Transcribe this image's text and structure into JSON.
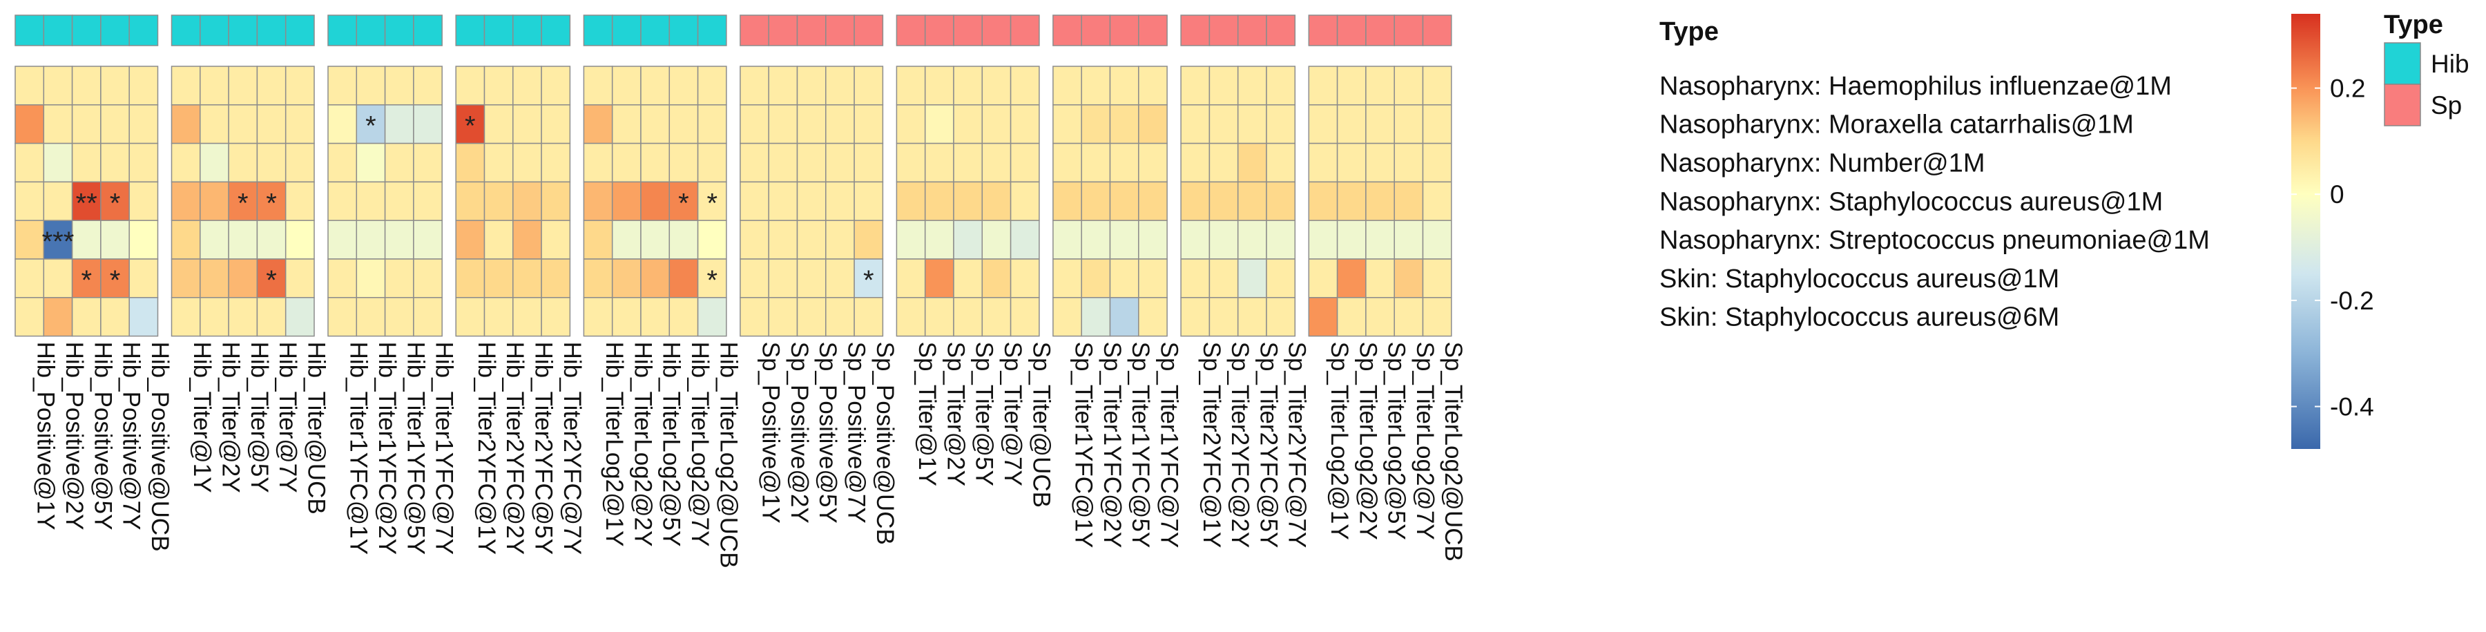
{
  "chart_data": {
    "type": "heatmap",
    "rows": [
      "Nasopharynx: Haemophilus influenzae@1M",
      "Nasopharynx: Moraxella catarrhalis@1M",
      "Nasopharynx: Number@1M",
      "Nasopharynx: Staphylococcus aureus@1M",
      "Nasopharynx: Streptococcus pneumoniae@1M",
      "Skin: Staphylococcus aureus@1M",
      "Skin: Staphylococcus aureus@6M"
    ],
    "column_groups": [
      {
        "type": "Hib",
        "columns": [
          "Hib_Positive@1Y",
          "Hib_Positive@2Y",
          "Hib_Positive@5Y",
          "Hib_Positive@7Y",
          "Hib_Positive@UCB"
        ]
      },
      {
        "type": "Hib",
        "columns": [
          "Hib_Titer@1Y",
          "Hib_Titer@2Y",
          "Hib_Titer@5Y",
          "Hib_Titer@7Y",
          "Hib_Titer@UCB"
        ]
      },
      {
        "type": "Hib",
        "columns": [
          "Hib_Titer1YFC@1Y",
          "Hib_Titer1YFC@2Y",
          "Hib_Titer1YFC@5Y",
          "Hib_Titer1YFC@7Y"
        ]
      },
      {
        "type": "Hib",
        "columns": [
          "Hib_Titer2YFC@1Y",
          "Hib_Titer2YFC@2Y",
          "Hib_Titer2YFC@5Y",
          "Hib_Titer2YFC@7Y"
        ]
      },
      {
        "type": "Hib",
        "columns": [
          "Hib_TiterLog2@1Y",
          "Hib_TiterLog2@2Y",
          "Hib_TiterLog2@5Y",
          "Hib_TiterLog2@7Y",
          "Hib_TiterLog2@UCB"
        ]
      },
      {
        "type": "Sp",
        "columns": [
          "Sp_Positive@1Y",
          "Sp_Positive@2Y",
          "Sp_Positive@5Y",
          "Sp_Positive@7Y",
          "Sp_Positive@UCB"
        ]
      },
      {
        "type": "Sp",
        "columns": [
          "Sp_Titer@1Y",
          "Sp_Titer@2Y",
          "Sp_Titer@5Y",
          "Sp_Titer@7Y",
          "Sp_Titer@UCB"
        ]
      },
      {
        "type": "Sp",
        "columns": [
          "Sp_Titer1YFC@1Y",
          "Sp_Titer1YFC@2Y",
          "Sp_Titer1YFC@5Y",
          "Sp_Titer1YFC@7Y"
        ]
      },
      {
        "type": "Sp",
        "columns": [
          "Sp_Titer2YFC@1Y",
          "Sp_Titer2YFC@2Y",
          "Sp_Titer2YFC@5Y",
          "Sp_Titer2YFC@7Y"
        ]
      },
      {
        "type": "Sp",
        "columns": [
          "Sp_TiterLog2@1Y",
          "Sp_TiterLog2@2Y",
          "Sp_TiterLog2@5Y",
          "Sp_TiterLog2@7Y",
          "Sp_TiterLog2@UCB"
        ]
      }
    ],
    "values": [
      [
        0.05,
        0.05,
        0.05,
        0.05,
        0.05,
        0.05,
        0.05,
        0.05,
        0.05,
        0.05,
        0.05,
        0.05,
        0.05,
        0.05,
        0.05,
        0.05,
        0.05,
        0.05,
        0.05,
        0.05,
        0.05,
        0.05,
        0.05,
        0.05,
        0.05,
        0.05,
        0.05,
        0.05,
        0.05,
        0.05,
        0.05,
        0.05,
        0.05,
        0.05,
        0.05,
        0.05,
        0.05,
        0.05,
        0.05,
        0.05,
        0.05,
        0.05,
        0.05,
        0.05,
        0.05,
        0.05
      ],
      [
        0.2,
        0.05,
        0.05,
        0.05,
        0.05,
        0.15,
        0.05,
        0.05,
        0.05,
        0.05,
        0.02,
        -0.2,
        -0.1,
        -0.1,
        0.3,
        0.05,
        0.05,
        0.05,
        0.15,
        0.05,
        0.05,
        0.05,
        0.05,
        0.05,
        0.05,
        0.05,
        0.05,
        0.05,
        0.05,
        0.02,
        0.05,
        0.05,
        0.05,
        0.05,
        0.08,
        0.08,
        0.1,
        0.05,
        0.05,
        0.05,
        0.05,
        0.05,
        0.05,
        0.05,
        0.05,
        0.05
      ],
      [
        0.05,
        -0.05,
        0.05,
        0.05,
        0.05,
        0.05,
        -0.05,
        0.05,
        0.05,
        0.05,
        0.05,
        -0.02,
        0.05,
        0.05,
        0.1,
        0.05,
        0.05,
        0.05,
        0.05,
        0.05,
        0.05,
        0.05,
        0.05,
        0.05,
        0.05,
        0.05,
        0.05,
        0.05,
        0.05,
        0.05,
        0.05,
        0.05,
        0.05,
        0.05,
        0.05,
        0.05,
        0.05,
        0.05,
        0.05,
        0.1,
        0.05,
        0.05,
        0.05,
        0.05,
        0.05,
        0.05
      ],
      [
        0.05,
        0.05,
        0.3,
        0.25,
        0.05,
        0.15,
        0.15,
        0.22,
        0.22,
        0.05,
        0.05,
        0.05,
        0.05,
        0.05,
        0.1,
        0.1,
        0.12,
        0.1,
        0.15,
        0.18,
        0.22,
        0.22,
        0.05,
        0.05,
        0.05,
        0.05,
        0.05,
        0.05,
        0.1,
        0.1,
        0.1,
        0.1,
        0.05,
        0.1,
        0.1,
        0.1,
        0.1,
        0.1,
        0.1,
        0.1,
        0.1,
        0.1,
        0.1,
        0.1,
        0.1,
        0.05
      ],
      [
        0.1,
        -0.45,
        -0.05,
        -0.05,
        0.0,
        0.1,
        -0.05,
        -0.05,
        -0.05,
        0.0,
        -0.05,
        -0.05,
        -0.05,
        -0.05,
        0.15,
        0.05,
        0.15,
        0.05,
        0.1,
        -0.05,
        -0.05,
        -0.05,
        0.0,
        0.05,
        0.05,
        0.05,
        0.05,
        0.1,
        -0.05,
        -0.05,
        -0.1,
        -0.05,
        -0.1,
        -0.05,
        -0.05,
        -0.05,
        -0.05,
        -0.05,
        -0.05,
        -0.05,
        -0.05,
        -0.05,
        -0.05,
        -0.05,
        -0.05,
        -0.05
      ],
      [
        0.05,
        0.05,
        0.22,
        0.22,
        0.05,
        0.12,
        0.12,
        0.15,
        0.25,
        0.05,
        0.05,
        0.02,
        0.05,
        0.05,
        0.1,
        0.1,
        0.1,
        0.1,
        0.1,
        0.12,
        0.15,
        0.22,
        0.05,
        0.05,
        0.05,
        0.05,
        0.05,
        -0.15,
        0.05,
        0.2,
        0.05,
        0.1,
        0.05,
        0.05,
        0.08,
        0.05,
        0.05,
        0.05,
        0.05,
        -0.1,
        0.05,
        0.05,
        0.2,
        0.05,
        0.12,
        0.05
      ],
      [
        0.05,
        0.15,
        0.05,
        0.05,
        -0.15,
        0.05,
        0.05,
        0.05,
        0.05,
        -0.1,
        0.05,
        0.05,
        0.05,
        0.05,
        0.05,
        0.05,
        0.05,
        0.05,
        0.05,
        0.05,
        0.05,
        0.05,
        -0.1,
        0.05,
        0.05,
        0.05,
        0.05,
        0.05,
        0.05,
        0.05,
        0.05,
        0.05,
        0.05,
        0.05,
        -0.1,
        -0.2,
        0.05,
        0.05,
        0.05,
        0.05,
        0.05,
        0.2,
        0.05,
        0.05,
        0.05,
        0.05
      ]
    ],
    "significance": [
      {
        "row": 1,
        "col": 11,
        "label": "*"
      },
      {
        "row": 1,
        "col": 14,
        "label": "*"
      },
      {
        "row": 3,
        "col": 2,
        "label": "**"
      },
      {
        "row": 3,
        "col": 3,
        "label": "*"
      },
      {
        "row": 3,
        "col": 7,
        "label": "*"
      },
      {
        "row": 3,
        "col": 8,
        "label": "*"
      },
      {
        "row": 3,
        "col": 21,
        "label": "*"
      },
      {
        "row": 3,
        "col": 22,
        "label": "*"
      },
      {
        "row": 4,
        "col": 1,
        "label": "***"
      },
      {
        "row": 5,
        "col": 2,
        "label": "*"
      },
      {
        "row": 5,
        "col": 3,
        "label": "*"
      },
      {
        "row": 5,
        "col": 8,
        "label": "*"
      },
      {
        "row": 5,
        "col": 22,
        "label": "*"
      },
      {
        "row": 5,
        "col": 27,
        "label": "*"
      }
    ],
    "color_scale": {
      "min": -0.48,
      "max": 0.34,
      "ticks": [
        0.2,
        0,
        -0.2,
        -0.4
      ],
      "tick_labels": [
        "0.2",
        "0",
        "-0.2",
        "-0.4"
      ],
      "stops": [
        {
          "value": -0.48,
          "color": "#3a68ab"
        },
        {
          "value": -0.3,
          "color": "#8cb4d8"
        },
        {
          "value": -0.15,
          "color": "#cfe6ef"
        },
        {
          "value": 0.0,
          "color": "#ffffbf"
        },
        {
          "value": 0.1,
          "color": "#fed98b"
        },
        {
          "value": 0.2,
          "color": "#f99457"
        },
        {
          "value": 0.34,
          "color": "#d7301f"
        }
      ]
    },
    "annotation": {
      "title": "Type",
      "entries": [
        {
          "label": "Hib",
          "color": "#20d3d6"
        },
        {
          "label": "Sp",
          "color": "#f97d7d"
        }
      ]
    },
    "legend_placement": "right"
  }
}
